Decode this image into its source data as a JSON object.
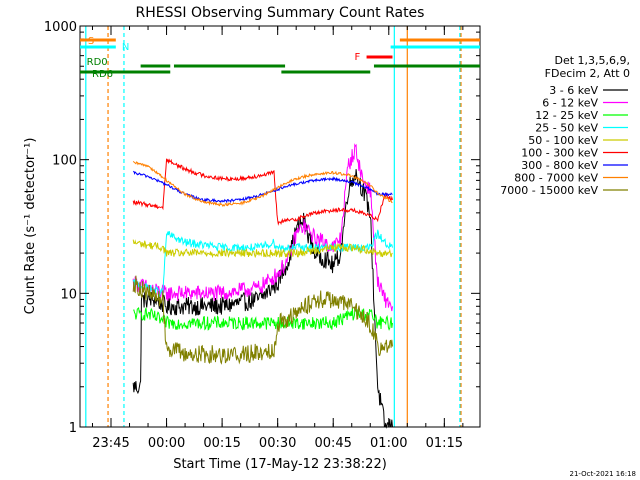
{
  "chart_data": {
    "type": "line",
    "title": "RHESSI Observing Summary Count Rates",
    "xlabel": "Start Time (17-May-12 23:38:22)",
    "ylabel": "Count Rate (s⁻¹ detector⁻¹)",
    "yscale": "log",
    "ylim": [
      1,
      1000
    ],
    "xlim_minutes": [
      -8.37,
      99.63
    ],
    "x_ticks": [
      {
        "label": "23:45",
        "t": 0
      },
      {
        "label": "00:00",
        "t": 15
      },
      {
        "label": "00:15",
        "t": 30
      },
      {
        "label": "00:30",
        "t": 45
      },
      {
        "label": "00:45",
        "t": 60
      },
      {
        "label": "01:00",
        "t": 75
      },
      {
        "label": "01:15",
        "t": 90
      }
    ],
    "y_ticks": [
      {
        "label": "1",
        "value": 1
      },
      {
        "label": "10",
        "value": 10
      },
      {
        "label": "100",
        "value": 100
      },
      {
        "label": "1000",
        "value": 1000
      }
    ],
    "legend": {
      "placement": "right",
      "header": [
        "Det 1,3,5,6,9,",
        "FDecim 2, Att 0"
      ]
    },
    "series": [
      {
        "name": "3 - 6 keV",
        "color": "#000000",
        "t": [
          6,
          8,
          8.2,
          12,
          15,
          20,
          30,
          40,
          45,
          48,
          50,
          52,
          55,
          58,
          60,
          62,
          64,
          66,
          68,
          70,
          72,
          74,
          76
        ],
        "values": [
          2,
          2,
          9,
          9,
          8,
          8,
          8,
          9,
          12,
          18,
          30,
          35,
          20,
          18,
          16,
          20,
          60,
          80,
          60,
          40,
          2,
          1,
          1
        ]
      },
      {
        "name": "6 - 12 keV",
        "color": "#ff00ff",
        "t": [
          6,
          10,
          15,
          20,
          30,
          40,
          45,
          48,
          50,
          52,
          55,
          58,
          60,
          62,
          64,
          66,
          68,
          70,
          72,
          74,
          76
        ],
        "values": [
          12,
          11,
          10,
          10,
          10,
          11,
          14,
          18,
          28,
          32,
          26,
          24,
          22,
          26,
          90,
          120,
          70,
          60,
          12,
          9,
          8
        ]
      },
      {
        "name": "12 - 25 keV",
        "color": "#00ff00",
        "t": [
          6,
          10,
          15,
          20,
          30,
          40,
          45,
          50,
          55,
          60,
          65,
          70,
          72,
          74,
          76
        ],
        "values": [
          7,
          7,
          6,
          6,
          6,
          6,
          6,
          6,
          6,
          6,
          7,
          7,
          6,
          6,
          6
        ]
      },
      {
        "name": "25 - 50 keV",
        "color": "#00ffff",
        "t": [
          6,
          10,
          14,
          15,
          20,
          30,
          40,
          44,
          45,
          48,
          52,
          56,
          60,
          64,
          68,
          70,
          72,
          74,
          76
        ],
        "values": [
          12,
          11,
          10,
          28,
          24,
          22,
          22,
          24,
          22,
          22,
          22,
          22,
          22,
          22,
          22,
          22,
          28,
          24,
          22
        ]
      },
      {
        "name": "50 - 100 keV",
        "color": "#cccc00",
        "t": [
          6,
          10,
          14,
          15,
          40,
          44,
          45,
          50,
          55,
          60,
          65,
          70,
          72,
          74,
          76
        ],
        "values": [
          24,
          23,
          22,
          20,
          20,
          20,
          20,
          20,
          21,
          22,
          22,
          21,
          20,
          20,
          20
        ]
      },
      {
        "name": "100 - 300 keV",
        "color": "#ff0000",
        "t": [
          6,
          10,
          14,
          15,
          20,
          25,
          30,
          35,
          40,
          44,
          45,
          50,
          55,
          60,
          65,
          70,
          72,
          74,
          76
        ],
        "values": [
          48,
          46,
          44,
          100,
          85,
          76,
          72,
          72,
          76,
          80,
          34,
          36,
          40,
          42,
          42,
          38,
          36,
          55,
          50
        ]
      },
      {
        "name": "300 - 800 keV",
        "color": "#0000ff",
        "t": [
          6,
          10,
          15,
          20,
          25,
          30,
          35,
          40,
          45,
          50,
          55,
          60,
          65,
          70,
          72,
          74,
          76
        ],
        "values": [
          80,
          75,
          65,
          55,
          50,
          49,
          50,
          54,
          60,
          66,
          70,
          72,
          68,
          60,
          55,
          55,
          55
        ]
      },
      {
        "name": "800 - 7000 keV",
        "color": "#ff8000",
        "t": [
          6,
          10,
          15,
          20,
          25,
          30,
          35,
          40,
          45,
          50,
          55,
          60,
          65,
          70,
          72,
          74,
          76
        ],
        "values": [
          95,
          90,
          70,
          55,
          48,
          46,
          47,
          52,
          62,
          72,
          78,
          80,
          76,
          64,
          56,
          52,
          48
        ]
      },
      {
        "name": "7000 - 15000 keV",
        "color": "#808000",
        "t": [
          6,
          10,
          14,
          15,
          20,
          25,
          30,
          35,
          40,
          44,
          45,
          50,
          55,
          60,
          65,
          70,
          72,
          74,
          76
        ],
        "values": [
          12,
          10,
          9,
          4,
          3.5,
          3.5,
          3.5,
          3.5,
          3.6,
          3.8,
          6,
          7,
          9,
          9,
          8,
          6,
          4,
          4,
          4
        ]
      }
    ],
    "annotations": [
      {
        "label": "S",
        "color": "#ff8000",
        "t_start": -8.37,
        "t_end": 1.3
      },
      {
        "label": "N",
        "color": "#00ffff",
        "t_start": -8.37,
        "t_end": 1.3
      },
      {
        "label": "RD0",
        "color": "#008000",
        "t_start": 8,
        "t_end": 16
      },
      {
        "label": "RD6",
        "color": "#008000",
        "t_start": -8.37,
        "t_end": 16
      },
      {
        "label": "F",
        "color": "#ff0000",
        "t_start": 69,
        "t_end": 76
      }
    ],
    "footer_date": "21-Oct-2021 16:18"
  }
}
